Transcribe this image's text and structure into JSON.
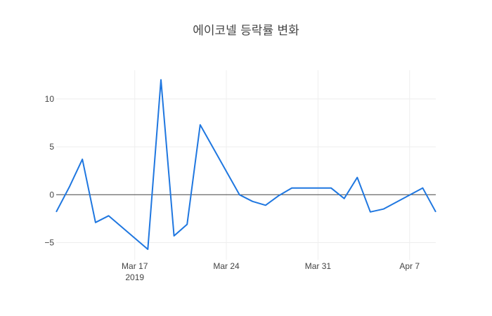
{
  "chart_data": {
    "type": "line",
    "title": "에이코넬 등락률 변화",
    "xlabel": "",
    "ylabel": "",
    "xlim": [
      "2019-03-11",
      "2019-04-09"
    ],
    "ylim": [
      -6.8,
      13
    ],
    "grid": true,
    "line_color": "#1f77e0",
    "zero_line_color": "#444444",
    "x_ticks": [
      {
        "date": "2019-03-17",
        "label": "Mar 17",
        "sublabel": "2019"
      },
      {
        "date": "2019-03-24",
        "label": "Mar 24",
        "sublabel": ""
      },
      {
        "date": "2019-03-31",
        "label": "Mar 31",
        "sublabel": ""
      },
      {
        "date": "2019-04-07",
        "label": "Apr 7",
        "sublabel": ""
      }
    ],
    "y_ticks": [
      {
        "value": -5,
        "label": "−5"
      },
      {
        "value": 0,
        "label": "0"
      },
      {
        "value": 5,
        "label": "5"
      },
      {
        "value": 10,
        "label": "10"
      }
    ],
    "series": [
      {
        "name": "",
        "x": [
          "2019-03-11",
          "2019-03-12",
          "2019-03-13",
          "2019-03-14",
          "2019-03-15",
          "2019-03-18",
          "2019-03-19",
          "2019-03-20",
          "2019-03-21",
          "2019-03-22",
          "2019-03-25",
          "2019-03-26",
          "2019-03-27",
          "2019-03-28",
          "2019-03-29",
          "2019-04-01",
          "2019-04-02",
          "2019-04-03",
          "2019-04-04",
          "2019-04-05",
          "2019-04-08",
          "2019-04-09"
        ],
        "values": [
          -1.8,
          0.8,
          3.7,
          -2.9,
          -2.2,
          -5.7,
          12.0,
          -4.3,
          -3.1,
          7.3,
          0.0,
          -0.7,
          -1.1,
          -0.1,
          0.7,
          0.7,
          -0.4,
          1.8,
          -1.8,
          -1.5,
          0.7,
          -1.8
        ]
      }
    ]
  }
}
